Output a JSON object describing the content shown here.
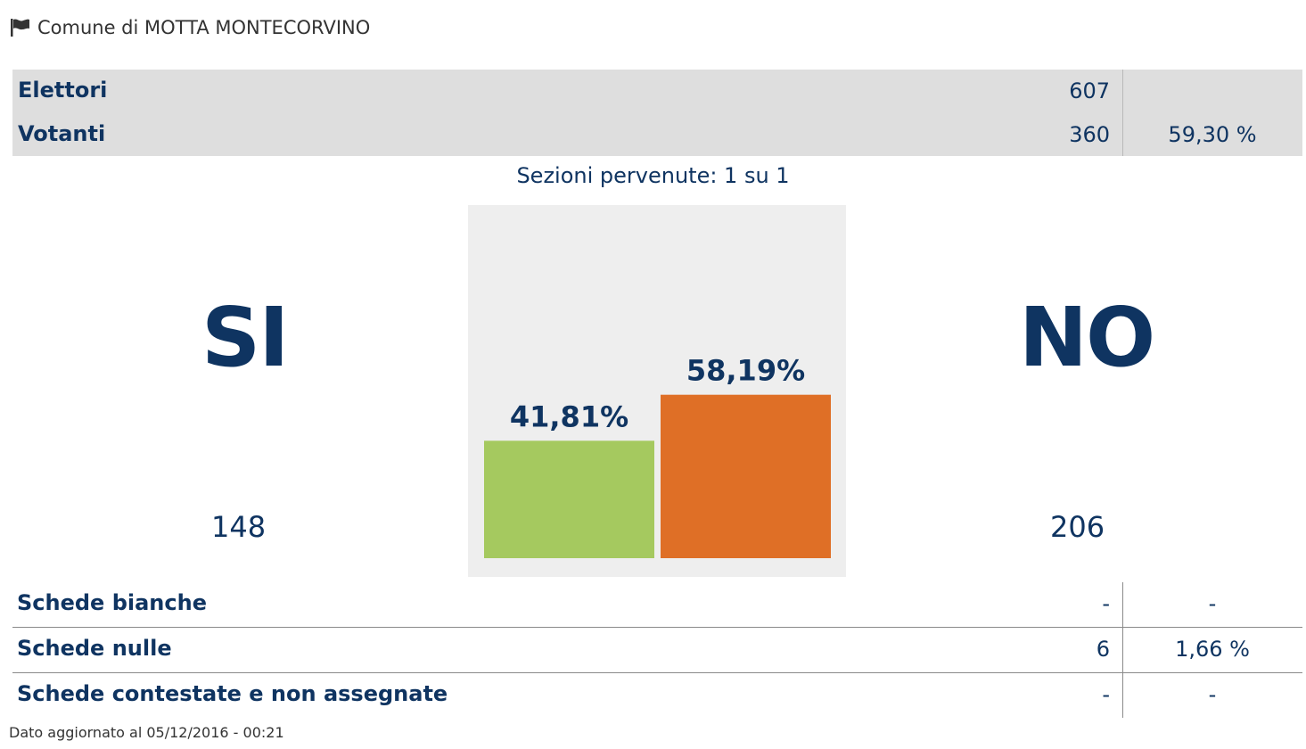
{
  "header": {
    "title": "Comune di MOTTA MONTECORVINO",
    "icon": "flag-icon"
  },
  "summary": {
    "rows": [
      {
        "label": "Elettori",
        "value": "607",
        "pct": ""
      },
      {
        "label": "Votanti",
        "value": "360",
        "pct": "59,30 %"
      }
    ]
  },
  "sezioni": "Sezioni pervenute: 1 su 1",
  "result": {
    "yes": {
      "label": "SI",
      "count": "148"
    },
    "no": {
      "label": "NO",
      "count": "206"
    }
  },
  "chart_data": {
    "type": "bar",
    "categories": [
      "SI",
      "NO"
    ],
    "values": [
      41.81,
      58.19
    ],
    "value_labels": [
      "41,81%",
      "58,19%"
    ],
    "colors": [
      "#a5c95f",
      "#df6f26"
    ],
    "ylim": [
      0,
      100
    ],
    "grid": false,
    "title": "",
    "xlabel": "",
    "ylabel": ""
  },
  "schede": [
    {
      "label": "Schede bianche",
      "value": "-",
      "pct": "-"
    },
    {
      "label": "Schede nulle",
      "value": "6",
      "pct": "1,66 %"
    },
    {
      "label": "Schede contestate e non assegnate",
      "value": "-",
      "pct": "-"
    }
  ],
  "footer": "Dato aggiornato al 05/12/2016 - 00:21",
  "colors": {
    "text": "#0f3461",
    "box": "#dedede",
    "chart_bg": "#eeeeee"
  }
}
